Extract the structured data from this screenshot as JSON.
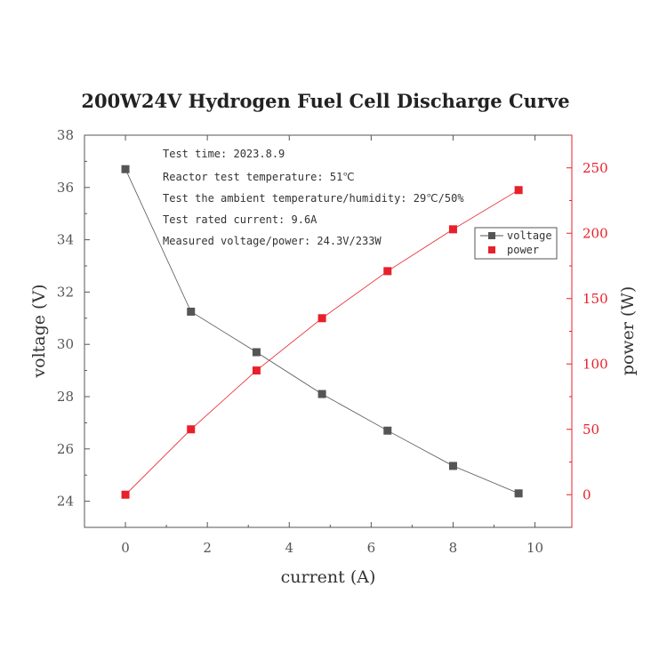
{
  "chart_data": {
    "type": "line",
    "title": "200W24V Hydrogen Fuel Cell Discharge Curve",
    "xlabel": "current (A)",
    "ylabel_left": "voltage (V)",
    "ylabel_right": "power (W)",
    "x_ticks": [
      "0",
      "2",
      "4",
      "6",
      "8",
      "10"
    ],
    "y_left_ticks": [
      "24",
      "26",
      "28",
      "30",
      "32",
      "34",
      "36",
      "38"
    ],
    "y_right_ticks": [
      "0",
      "50",
      "100",
      "150",
      "200",
      "250"
    ],
    "xlim": [
      -1,
      10.9
    ],
    "ylim_left": [
      23,
      38
    ],
    "ylim_right": [
      -25,
      275
    ],
    "grid": false,
    "legend_position": "upper-right",
    "series": [
      {
        "name": "voltage",
        "axis": "left",
        "color": "#555555",
        "marker": "square",
        "x": [
          0,
          1.6,
          3.2,
          4.8,
          6.4,
          8.0,
          9.6
        ],
        "y": [
          36.7,
          31.25,
          29.7,
          28.1,
          26.7,
          25.35,
          24.3
        ]
      },
      {
        "name": "power",
        "axis": "right",
        "color": "#e8202a",
        "marker": "square",
        "x": [
          0,
          1.6,
          3.2,
          4.8,
          6.4,
          8.0,
          9.6
        ],
        "y": [
          0,
          50,
          95,
          135,
          171,
          203,
          233
        ]
      }
    ],
    "annotations": [
      "Test time: 2023.8.9",
      "Reactor test temperature: 51℃",
      "Test the ambient temperature/humidity: 29℃/50%",
      "Test rated current: 9.6A",
      "Measured voltage/power: 24.3V/233W"
    ]
  },
  "colors": {
    "axis": "#555555",
    "right_axis": "#e8202a",
    "text": "#333333"
  }
}
